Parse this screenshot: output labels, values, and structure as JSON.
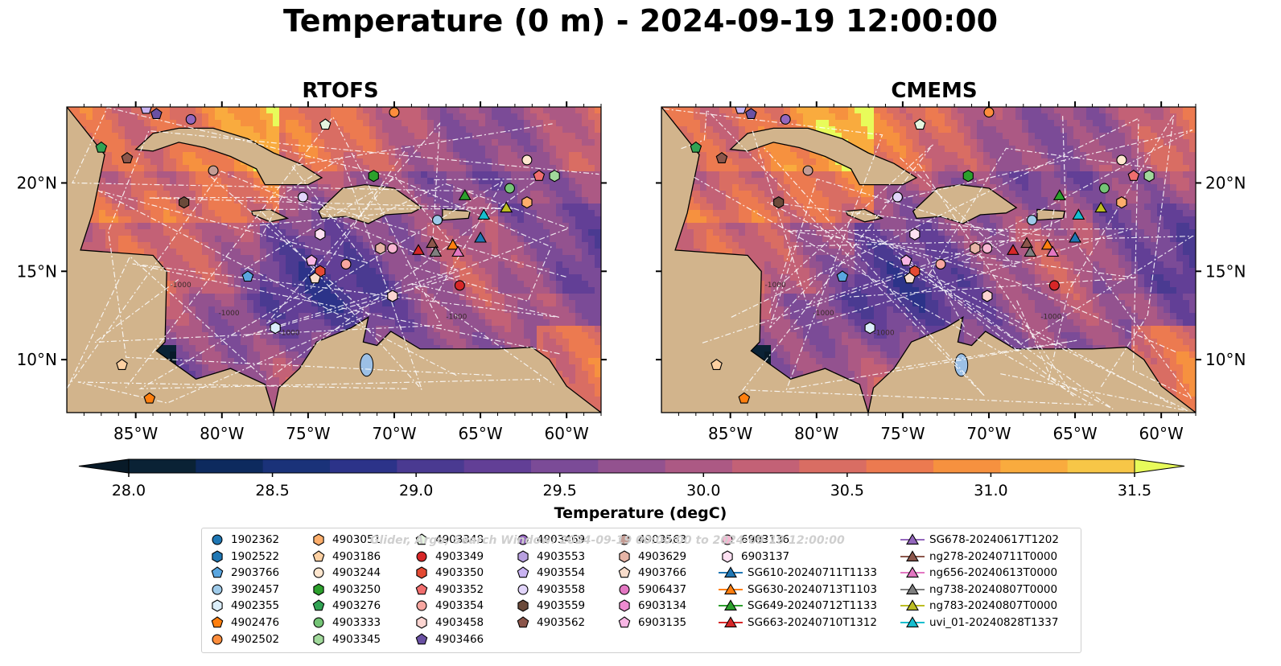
{
  "title": "Temperature (0 m) - 2024-09-19 12:00:00",
  "panels": [
    {
      "title": "RTOFS"
    },
    {
      "title": "CMEMS"
    }
  ],
  "map": {
    "lon_range": [
      -89,
      -58
    ],
    "lat_range": [
      7,
      24.3
    ],
    "lon_ticks": [
      -85,
      -80,
      -75,
      -70,
      -65,
      -60
    ],
    "lon_tick_labels": [
      "85°W",
      "80°W",
      "75°W",
      "70°W",
      "65°W",
      "60°W"
    ],
    "lat_ticks": [
      10,
      15,
      20
    ],
    "lat_tick_labels": [
      "10°N",
      "15°N",
      "20°N"
    ],
    "contour_labels": [
      "-1000",
      "-1000",
      "-1000",
      "-1000"
    ]
  },
  "colorbar": {
    "label": "Temperature (degC)",
    "min": 28.0,
    "max": 31.5,
    "step": 0.25,
    "ticks": [
      "28.0",
      "28.5",
      "29.0",
      "29.5",
      "30.0",
      "30.5",
      "31.0",
      "31.5"
    ],
    "colors": [
      "#0a2235",
      "#0d2a5e",
      "#1a3279",
      "#2c3389",
      "#4a3a91",
      "#623f96",
      "#7b4b97",
      "#93528f",
      "#ac5984",
      "#c36176",
      "#d96d63",
      "#ec7a50",
      "#f6913f",
      "#f9ab3e",
      "#f7c647"
    ],
    "over_color": "#e8fb5a",
    "under_color": "#081a28"
  },
  "watermark": "Glider, Argo, Search Window: 2024-09-19 00:00:00 to 2024-09-19 12:00:00",
  "legend": {
    "columns": [
      [
        {
          "label": "1902362",
          "marker": "circle",
          "color": "#1f77b4"
        },
        {
          "label": "1902522",
          "marker": "hexagon",
          "color": "#1f77b4"
        },
        {
          "label": "2903766",
          "marker": "pentagon",
          "color": "#5aa6e0"
        },
        {
          "label": "3902457",
          "marker": "circle",
          "color": "#9ecae9"
        },
        {
          "label": "4902355",
          "marker": "hexagon",
          "color": "#dbeefa"
        },
        {
          "label": "4902476",
          "marker": "pentagon",
          "color": "#ff7f0e"
        },
        {
          "label": "4902502",
          "marker": "circle",
          "color": "#fd8d3c"
        }
      ],
      [
        {
          "label": "4903051",
          "marker": "hexagon",
          "color": "#fdae6b"
        },
        {
          "label": "4903186",
          "marker": "pentagon",
          "color": "#fdd0a2"
        },
        {
          "label": "4903244",
          "marker": "circle",
          "color": "#fee6ce"
        },
        {
          "label": "4903250",
          "marker": "hexagon",
          "color": "#2ca02c"
        },
        {
          "label": "4903276",
          "marker": "pentagon",
          "color": "#31a354"
        },
        {
          "label": "4903333",
          "marker": "circle",
          "color": "#74c476"
        },
        {
          "label": "4903345",
          "marker": "hexagon",
          "color": "#a1d99b"
        }
      ],
      [
        {
          "label": "4903348",
          "marker": "pentagon",
          "color": "#e5f5e0"
        },
        {
          "label": "4903349",
          "marker": "circle",
          "color": "#d62728"
        },
        {
          "label": "4903350",
          "marker": "hexagon",
          "color": "#e34a33"
        },
        {
          "label": "4903352",
          "marker": "pentagon",
          "color": "#f16e6e"
        },
        {
          "label": "4903354",
          "marker": "circle",
          "color": "#f7a6a0"
        },
        {
          "label": "4903458",
          "marker": "hexagon",
          "color": "#fcd5d1"
        },
        {
          "label": "4903466",
          "marker": "pentagon",
          "color": "#6a51a3"
        }
      ],
      [
        {
          "label": "4903469",
          "marker": "circle",
          "color": "#9467bd"
        },
        {
          "label": "4903553",
          "marker": "hexagon",
          "color": "#b8a0e0"
        },
        {
          "label": "4903554",
          "marker": "pentagon",
          "color": "#c9b3f2"
        },
        {
          "label": "4903558",
          "marker": "circle",
          "color": "#e2d5fb"
        },
        {
          "label": "4903559",
          "marker": "hexagon",
          "color": "#6b4a3a"
        },
        {
          "label": "4903562",
          "marker": "pentagon",
          "color": "#8c564b"
        }
      ],
      [
        {
          "label": "4903563",
          "marker": "circle",
          "color": "#c49c94"
        },
        {
          "label": "4903629",
          "marker": "hexagon",
          "color": "#e6b4a6"
        },
        {
          "label": "4903766",
          "marker": "pentagon",
          "color": "#f7dccb"
        },
        {
          "label": "5906437",
          "marker": "circle",
          "color": "#e377c2"
        },
        {
          "label": "6903134",
          "marker": "hexagon",
          "color": "#ee8bd0"
        },
        {
          "label": "6903135",
          "marker": "pentagon",
          "color": "#f7b6e4"
        }
      ],
      [
        {
          "label": "6903136",
          "marker": "circle",
          "color": "#f7b6d2"
        },
        {
          "label": "6903137",
          "marker": "hexagon",
          "color": "#fde0f2"
        },
        {
          "label": "SG610-20240711T1133",
          "marker": "triangle",
          "color": "#1f77b4"
        },
        {
          "label": "SG630-20240713T1103",
          "marker": "triangle",
          "color": "#ff7f0e"
        },
        {
          "label": "SG649-20240712T1133",
          "marker": "triangle",
          "color": "#2ca02c"
        },
        {
          "label": "SG663-20240710T1312",
          "marker": "triangle",
          "color": "#d62728"
        }
      ],
      [
        {
          "label": "SG678-20240617T1202",
          "marker": "triangle",
          "color": "#9467bd"
        },
        {
          "label": "ng278-20240711T0000",
          "marker": "triangle",
          "color": "#8c564b"
        },
        {
          "label": "ng656-20240613T0000",
          "marker": "triangle",
          "color": "#e377c2"
        },
        {
          "label": "ng738-20240807T0000",
          "marker": "triangle",
          "color": "#7f7f7f"
        },
        {
          "label": "ng783-20240807T0000",
          "marker": "triangle",
          "color": "#bcbd22"
        },
        {
          "label": "uvi_01-20240828T1337",
          "marker": "triangle",
          "color": "#17becf"
        }
      ]
    ]
  },
  "observations": [
    {
      "id": "2903766",
      "lon": -78.5,
      "lat": 14.7
    },
    {
      "id": "3902457",
      "lon": -67.5,
      "lat": 17.9
    },
    {
      "id": "4902355",
      "lon": -76.9,
      "lat": 11.8
    },
    {
      "id": "4902476",
      "lon": -84.2,
      "lat": 7.8
    },
    {
      "id": "4902502",
      "lon": -70.0,
      "lat": 24.0
    },
    {
      "id": "4903051",
      "lon": -62.3,
      "lat": 18.9
    },
    {
      "id": "4903186",
      "lon": -85.8,
      "lat": 9.7
    },
    {
      "id": "4903244",
      "lon": -62.3,
      "lat": 21.3
    },
    {
      "id": "4903250",
      "lon": -71.2,
      "lat": 20.4
    },
    {
      "id": "4903276",
      "lon": -87.0,
      "lat": 22.0
    },
    {
      "id": "4903333",
      "lon": -63.3,
      "lat": 19.7
    },
    {
      "id": "4903345",
      "lon": -60.7,
      "lat": 20.4
    },
    {
      "id": "4903348",
      "lon": -74.0,
      "lat": 23.3
    },
    {
      "id": "4903349",
      "lon": -66.2,
      "lat": 14.2
    },
    {
      "id": "4903350",
      "lon": -74.3,
      "lat": 15.0
    },
    {
      "id": "4903352",
      "lon": -61.6,
      "lat": 20.4
    },
    {
      "id": "4903354",
      "lon": -72.8,
      "lat": 15.4
    },
    {
      "id": "4903458",
      "lon": -70.1,
      "lat": 13.6
    },
    {
      "id": "4903466",
      "lon": -83.8,
      "lat": 23.9
    },
    {
      "id": "4903469",
      "lon": -81.8,
      "lat": 23.6
    },
    {
      "id": "4903554",
      "lon": -84.4,
      "lat": 24.2
    },
    {
      "id": "4903558",
      "lon": -75.3,
      "lat": 19.2
    },
    {
      "id": "4903559",
      "lon": -82.2,
      "lat": 18.9
    },
    {
      "id": "4903562",
      "lon": -85.5,
      "lat": 21.4
    },
    {
      "id": "4903563",
      "lon": -80.5,
      "lat": 20.7
    },
    {
      "id": "4903629",
      "lon": -70.8,
      "lat": 16.3
    },
    {
      "id": "4903766",
      "lon": -74.6,
      "lat": 14.6
    },
    {
      "id": "6903135",
      "lon": -74.8,
      "lat": 15.6
    },
    {
      "id": "6903136",
      "lon": -70.1,
      "lat": 16.3
    },
    {
      "id": "6903137",
      "lon": -74.3,
      "lat": 17.1
    },
    {
      "id": "SG610-20240711T1133",
      "lon": -65.0,
      "lat": 16.9
    },
    {
      "id": "SG630-20240713T1103",
      "lon": -66.6,
      "lat": 16.5
    },
    {
      "id": "SG649-20240712T1133",
      "lon": -65.9,
      "lat": 19.3
    },
    {
      "id": "SG663-20240710T1312",
      "lon": -68.6,
      "lat": 16.2
    },
    {
      "id": "ng278-20240711T0000",
      "lon": -67.8,
      "lat": 16.6
    },
    {
      "id": "ng656-20240613T0000",
      "lon": -66.3,
      "lat": 16.1
    },
    {
      "id": "ng738-20240807T0000",
      "lon": -67.6,
      "lat": 16.1
    },
    {
      "id": "ng783-20240807T0000",
      "lon": -63.5,
      "lat": 18.6
    },
    {
      "id": "uvi_01-20240828T1337",
      "lon": -64.8,
      "lat": 18.2
    }
  ]
}
